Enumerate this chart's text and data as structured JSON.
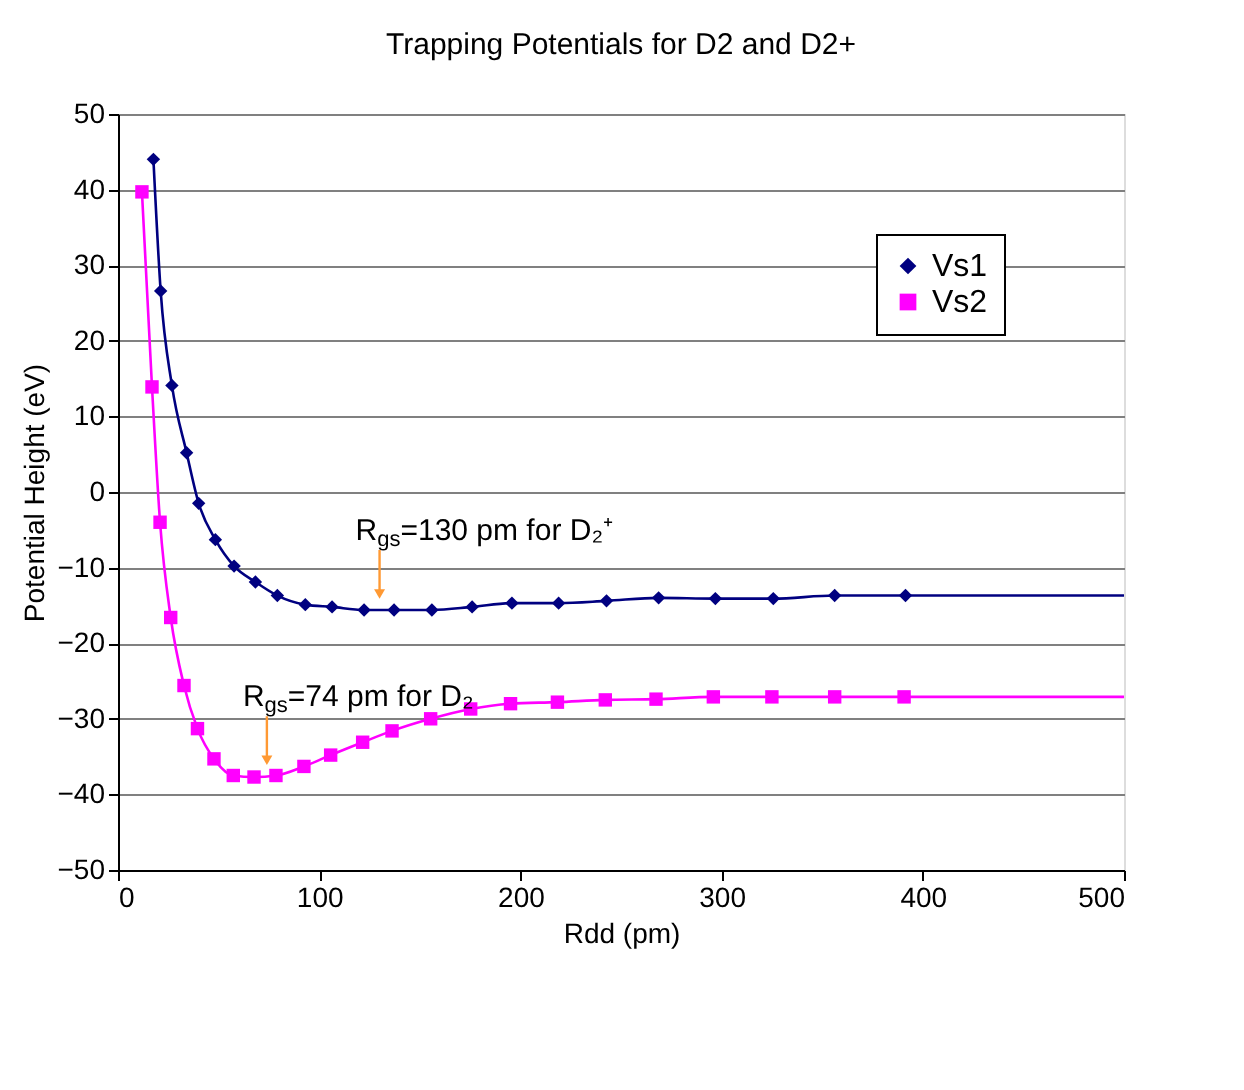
{
  "chart_data": {
    "type": "line",
    "title": "Trapping Potentials for D2 and D2+",
    "xlabel": "Rdd (pm)",
    "ylabel": "Potential Height (eV)",
    "xlim": [
      0,
      500
    ],
    "xticks": [
      0,
      100,
      200,
      300,
      400,
      500
    ],
    "ylim": [
      -50,
      50
    ],
    "yticks": [
      -50,
      -40,
      -30,
      -20,
      -10,
      0,
      10,
      20,
      30,
      40,
      50
    ],
    "grid": "y",
    "legend": "top right",
    "line_style": "solid",
    "series": [
      {
        "name": "Vs1",
        "color": "#000080",
        "marker": "diamond",
        "x": [
          17.6,
          21.2,
          26.8,
          34.1,
          40.1,
          48.4,
          57.7,
          68.3,
          79.2,
          93.1,
          106.4,
          122.3,
          137.2,
          156,
          176,
          195.8,
          219,
          242.8,
          268.7,
          296.9,
          325.7,
          356.2,
          391.4
        ],
        "values": [
          44,
          26.6,
          14.1,
          5.2,
          -1.5,
          -6.3,
          -9.8,
          -11.9,
          -13.7,
          -14.9,
          -15.2,
          -15.6,
          -15.6,
          -15.6,
          -15.2,
          -14.7,
          -14.7,
          -14.4,
          -14.0,
          -14.1,
          -14.1,
          -13.7,
          -13.7
        ]
      },
      {
        "name": "Vs2",
        "color": "#ff00ff",
        "marker": "square",
        "x": [
          11.9,
          16.9,
          20.9,
          26.2,
          32.8,
          39.5,
          47.7,
          57.3,
          67.6,
          78.5,
          92.4,
          105.7,
          121.6,
          136.2,
          155.4,
          175.3,
          195.1,
          218.4,
          242.2,
          267.4,
          295.9,
          325,
          356.2,
          390.7
        ],
        "values": [
          39.7,
          13.9,
          -4.0,
          -16.6,
          -25.6,
          -31.3,
          -35.3,
          -37.5,
          -37.7,
          -37.5,
          -36.3,
          -34.8,
          -33.1,
          -31.6,
          -30.0,
          -28.7,
          -28.0,
          -27.8,
          -27.5,
          -27.4,
          -27.1,
          -27.1,
          -27.1,
          -27.1
        ]
      },
      {
        "color": "#000080",
        "marker": "none",
        "x": [
          391.4,
          500
        ],
        "values": [
          -13.7,
          -13.7
        ]
      },
      {
        "color": "#ff00ff",
        "marker": "none",
        "x": [
          390.7,
          500
        ],
        "values": [
          -27.1,
          -27.1
        ]
      }
    ],
    "annotations": [
      {
        "text": "R$_{gs}$=130 pm for D₂⁺",
        "x": 130,
        "y": -15.6
      },
      {
        "text": "R$_{gs}$=74 pm for D₂",
        "x": 74,
        "y": -37.6
      }
    ]
  }
}
